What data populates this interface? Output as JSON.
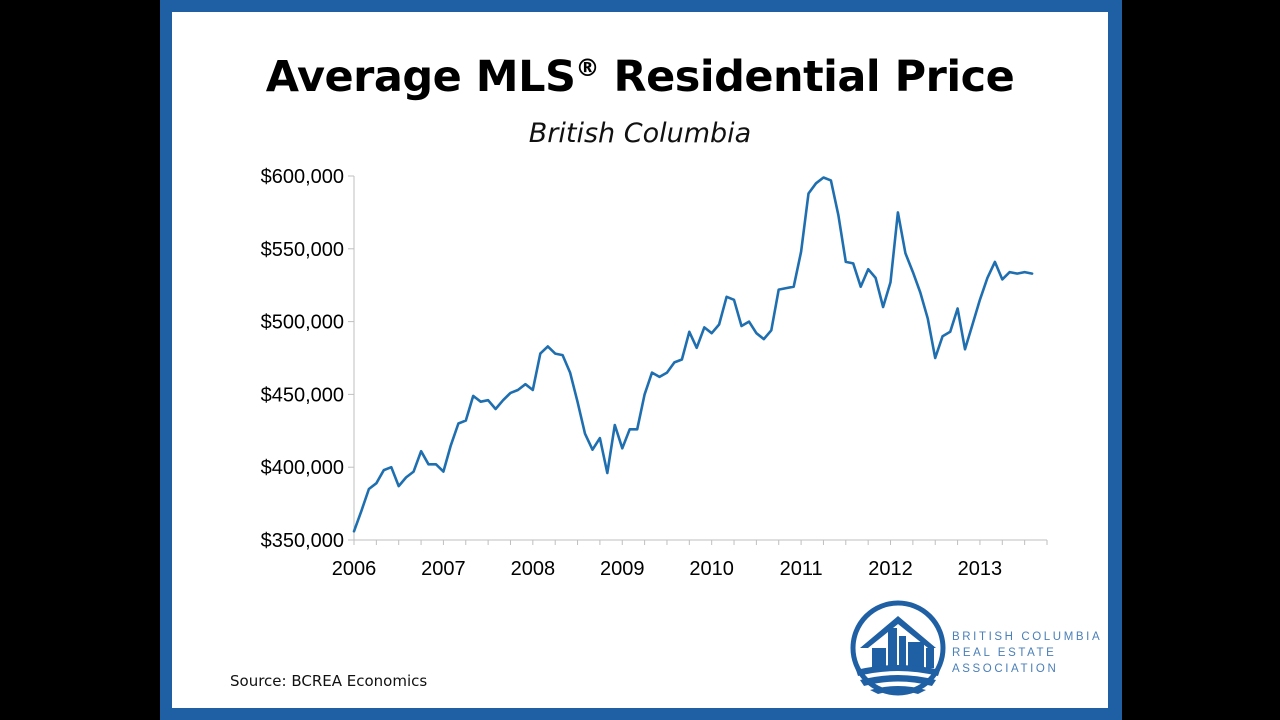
{
  "source": "Source:  BCREA Economics",
  "logo": {
    "line1": "BRITISH COLUMBIA",
    "line2": "REAL ESTATE",
    "line3": "ASSOCIATION"
  },
  "colors": {
    "frame": "#1f5fa4",
    "line": "#1f6fb0",
    "logo": "#1f5fa4"
  },
  "chart_data": {
    "type": "line",
    "title": "Average MLS",
    "title_mark": "®",
    "title_rest": " Residential Price",
    "subtitle": "British Columbia",
    "xlabel": "",
    "ylabel": "",
    "ylim": [
      350000,
      600000
    ],
    "yticks": [
      350000,
      400000,
      450000,
      500000,
      550000,
      600000
    ],
    "ytick_labels": [
      "$350,000",
      "$400,000",
      "$450,000",
      "$500,000",
      "$550,000",
      "$600,000"
    ],
    "xticks": [
      2006,
      2007,
      2008,
      2009,
      2010,
      2011,
      2012,
      2013
    ],
    "xtick_labels": [
      "2006",
      "2007",
      "2008",
      "2009",
      "2010",
      "2011",
      "2012",
      "2013"
    ],
    "xlim": [
      2006,
      2013.75
    ],
    "grid": false,
    "series": [
      {
        "x": [
          2006.0,
          2006.083,
          2006.167,
          2006.25,
          2006.333,
          2006.417,
          2006.5,
          2006.583,
          2006.667,
          2006.75,
          2006.833,
          2006.917,
          2007.0,
          2007.083,
          2007.167,
          2007.25,
          2007.333,
          2007.417,
          2007.5,
          2007.583,
          2007.667,
          2007.75,
          2007.833,
          2007.917,
          2008.0,
          2008.083,
          2008.167,
          2008.25,
          2008.333,
          2008.417,
          2008.5,
          2008.583,
          2008.667,
          2008.75,
          2008.833,
          2008.917,
          2009.0,
          2009.083,
          2009.167,
          2009.25,
          2009.333,
          2009.417,
          2009.5,
          2009.583,
          2009.667,
          2009.75,
          2009.833,
          2009.917,
          2010.0,
          2010.083,
          2010.167,
          2010.25,
          2010.333,
          2010.417,
          2010.5,
          2010.583,
          2010.667,
          2010.75,
          2010.833,
          2010.917,
          2011.0,
          2011.083,
          2011.167,
          2011.25,
          2011.333,
          2011.417,
          2011.5,
          2011.583,
          2011.667,
          2011.75,
          2011.833,
          2011.917,
          2012.0,
          2012.083,
          2012.167,
          2012.25,
          2012.333,
          2012.417,
          2012.5,
          2012.583,
          2012.667,
          2012.75,
          2012.833,
          2012.917,
          2013.0,
          2013.083,
          2013.167,
          2013.25,
          2013.333,
          2013.417,
          2013.5,
          2013.583
        ],
        "values": [
          356000,
          370000,
          385000,
          389000,
          398000,
          400000,
          387000,
          393000,
          397000,
          411000,
          402000,
          402000,
          397000,
          415000,
          430000,
          432000,
          449000,
          445000,
          446000,
          440000,
          446000,
          451000,
          453000,
          457000,
          453000,
          478000,
          483000,
          478000,
          477000,
          465000,
          445000,
          423000,
          412000,
          420000,
          396000,
          429000,
          413000,
          426000,
          426000,
          450000,
          465000,
          462000,
          465000,
          472000,
          474000,
          493000,
          482000,
          496000,
          492000,
          498000,
          517000,
          515000,
          497000,
          500000,
          492000,
          488000,
          494000,
          522000,
          523000,
          524000,
          548000,
          588000,
          595000,
          599000,
          597000,
          573000,
          541000,
          540000,
          524000,
          536000,
          530000,
          510000,
          527000,
          575000,
          547000,
          534000,
          520000,
          502000,
          475000,
          490000,
          493000,
          509000,
          481000,
          498000,
          515000,
          530000,
          541000,
          529000,
          534000,
          533000,
          534000,
          533000
        ]
      }
    ]
  }
}
